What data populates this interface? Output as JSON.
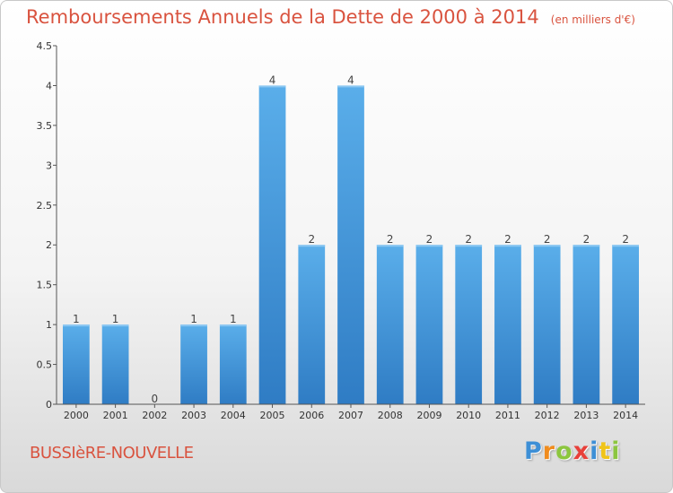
{
  "chart_data": {
    "type": "bar",
    "title": "Remboursements Annuels de la Dette de 2000 à 2014",
    "subtitle": "(en milliers d'€)",
    "categories": [
      "2000",
      "2001",
      "2002",
      "2003",
      "2004",
      "2005",
      "2006",
      "2007",
      "2008",
      "2009",
      "2010",
      "2011",
      "2012",
      "2013",
      "2014"
    ],
    "values": [
      1,
      1,
      0,
      1,
      1,
      4,
      2,
      4,
      2,
      2,
      2,
      2,
      2,
      2,
      2
    ],
    "data_labels": [
      "1",
      "1",
      "0",
      "1",
      "1",
      "4",
      "2",
      "4",
      "2",
      "2",
      "2",
      "2",
      "2",
      "2",
      "2"
    ],
    "ylim": [
      0,
      4.5
    ],
    "yticks": [
      0,
      0.5,
      1,
      1.5,
      2,
      2.5,
      3,
      3.5,
      4,
      4.5
    ],
    "ytick_labels": [
      "0",
      "0.5",
      "1",
      "1.5",
      "2",
      "2.5",
      "3",
      "3.5",
      "4",
      "4.5"
    ],
    "grid": false,
    "bar_color": "#3a8fd9"
  },
  "footer": {
    "commune": "BUSSIèRE-NOUVELLE",
    "logo_letters": [
      {
        "char": "P",
        "color": "#3d8fd6"
      },
      {
        "char": "r",
        "color": "#f08c1e"
      },
      {
        "char": "o",
        "color": "#8cc63f"
      },
      {
        "char": "x",
        "color": "#e8403a"
      },
      {
        "char": "i",
        "color": "#3d8fd6"
      },
      {
        "char": "t",
        "color": "#f0c419"
      },
      {
        "char": "i",
        "color": "#8cc63f"
      }
    ]
  }
}
